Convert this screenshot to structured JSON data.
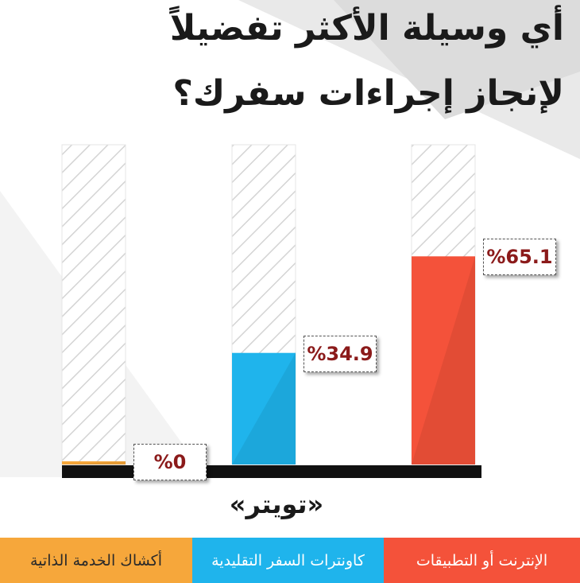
{
  "title_line1": "أي وسيلة الأكثر تفضيلاً",
  "title_line2": "لإنجاز إجراءات سفرك؟",
  "source": "«تويتر»",
  "chart_data": {
    "type": "bar",
    "categories": [
      "الإنترنت أو التطبيقات",
      "كاونترات السفر التقليدية",
      "أكشاك الخدمة الذاتية"
    ],
    "values": [
      65.1,
      34.9,
      0
    ],
    "value_labels": [
      "%65.1",
      "%34.9",
      "%0"
    ],
    "ylim": [
      0,
      100
    ],
    "colors": [
      "#f4523a",
      "#1fb4ec",
      "#f6a73b"
    ],
    "legend_placement": "bottom",
    "grid": false
  }
}
